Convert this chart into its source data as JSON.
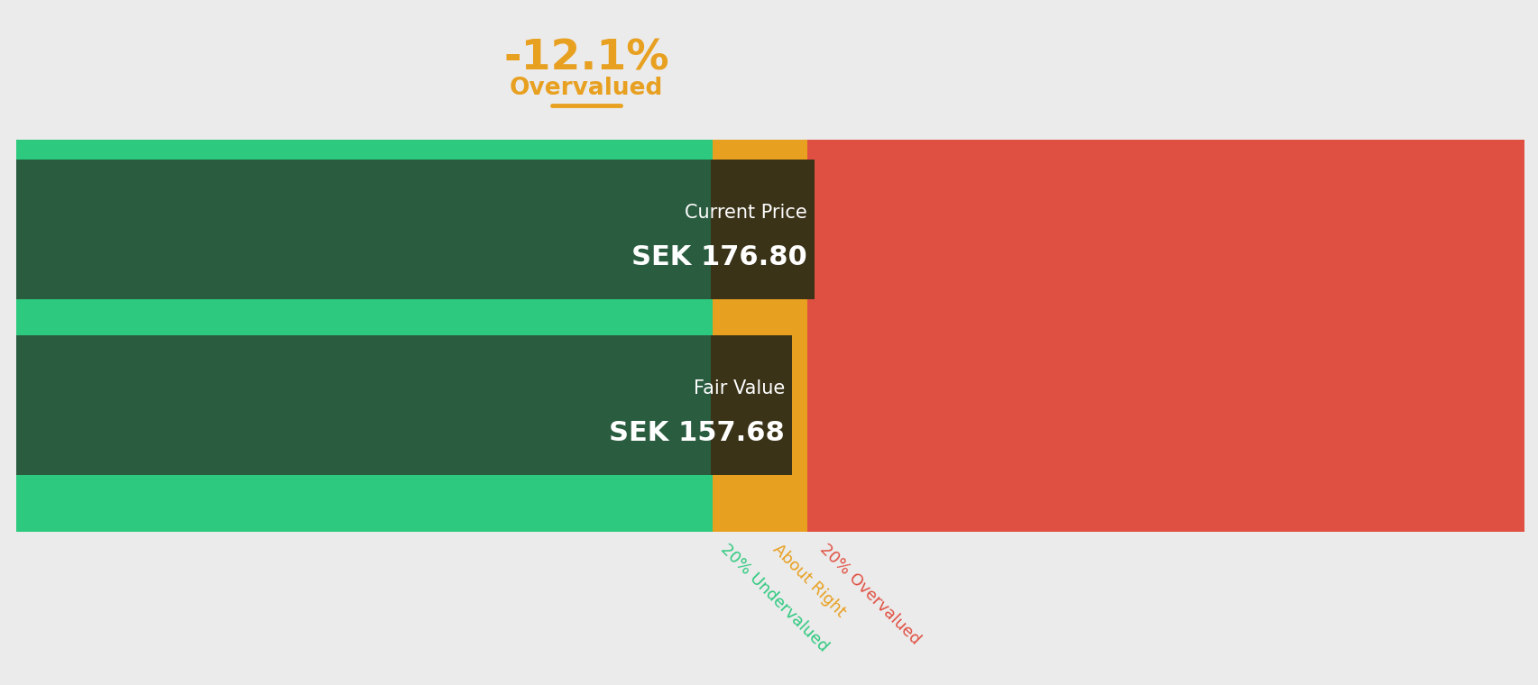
{
  "background_color": "#ebebeb",
  "percentage_text": "-12.1%",
  "overvalued_text": "Overvalued",
  "annotation_color": "#e8a020",
  "green_color": "#2dc97e",
  "dark_green_color": "#2a5c40",
  "yellow_color": "#e8a020",
  "red_color": "#e05042",
  "box_color": "#3a3318",
  "current_price_label": "Current Price",
  "current_price_value": "SEK 176.80",
  "fair_value_label": "Fair Value",
  "fair_value_value": "SEK 157.68",
  "label_20under": "20% Undervalued",
  "label_about": "About Right",
  "label_20over": "20% Overvalued",
  "label_under_color": "#2dc97e",
  "label_about_color": "#e8a020",
  "label_over_color": "#e05042"
}
